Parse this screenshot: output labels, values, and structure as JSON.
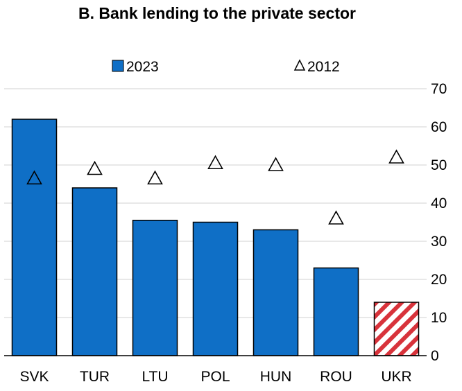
{
  "chart_data": {
    "type": "bar",
    "title": "B. Bank lending to the private sector",
    "categories": [
      "SVK",
      "TUR",
      "LTU",
      "POL",
      "HUN",
      "ROU",
      "UKR"
    ],
    "series": [
      {
        "name": "2023",
        "kind": "bar",
        "values": [
          62,
          44,
          35.5,
          35,
          33,
          23,
          14
        ],
        "colors": [
          "#0f6fc6",
          "#0f6fc6",
          "#0f6fc6",
          "#0f6fc6",
          "#0f6fc6",
          "#0f6fc6",
          "hatched-red-white"
        ]
      },
      {
        "name": "2012",
        "kind": "marker",
        "marker": "open-triangle",
        "values": [
          46.5,
          49,
          46.5,
          50.5,
          50,
          36,
          52
        ]
      }
    ],
    "ylim": [
      0,
      70
    ],
    "yticks": [
      "0",
      "10",
      "20",
      "30",
      "40",
      "50",
      "60",
      "70"
    ],
    "xlabel": "",
    "ylabel": "",
    "y_axis_side": "right",
    "grid": true,
    "legend_placement": "top"
  },
  "colors": {
    "bar": "#0f6fc6",
    "bar_outline": "#000000",
    "hatch_red": "#d8333b",
    "grid": "#d9d9d9"
  }
}
